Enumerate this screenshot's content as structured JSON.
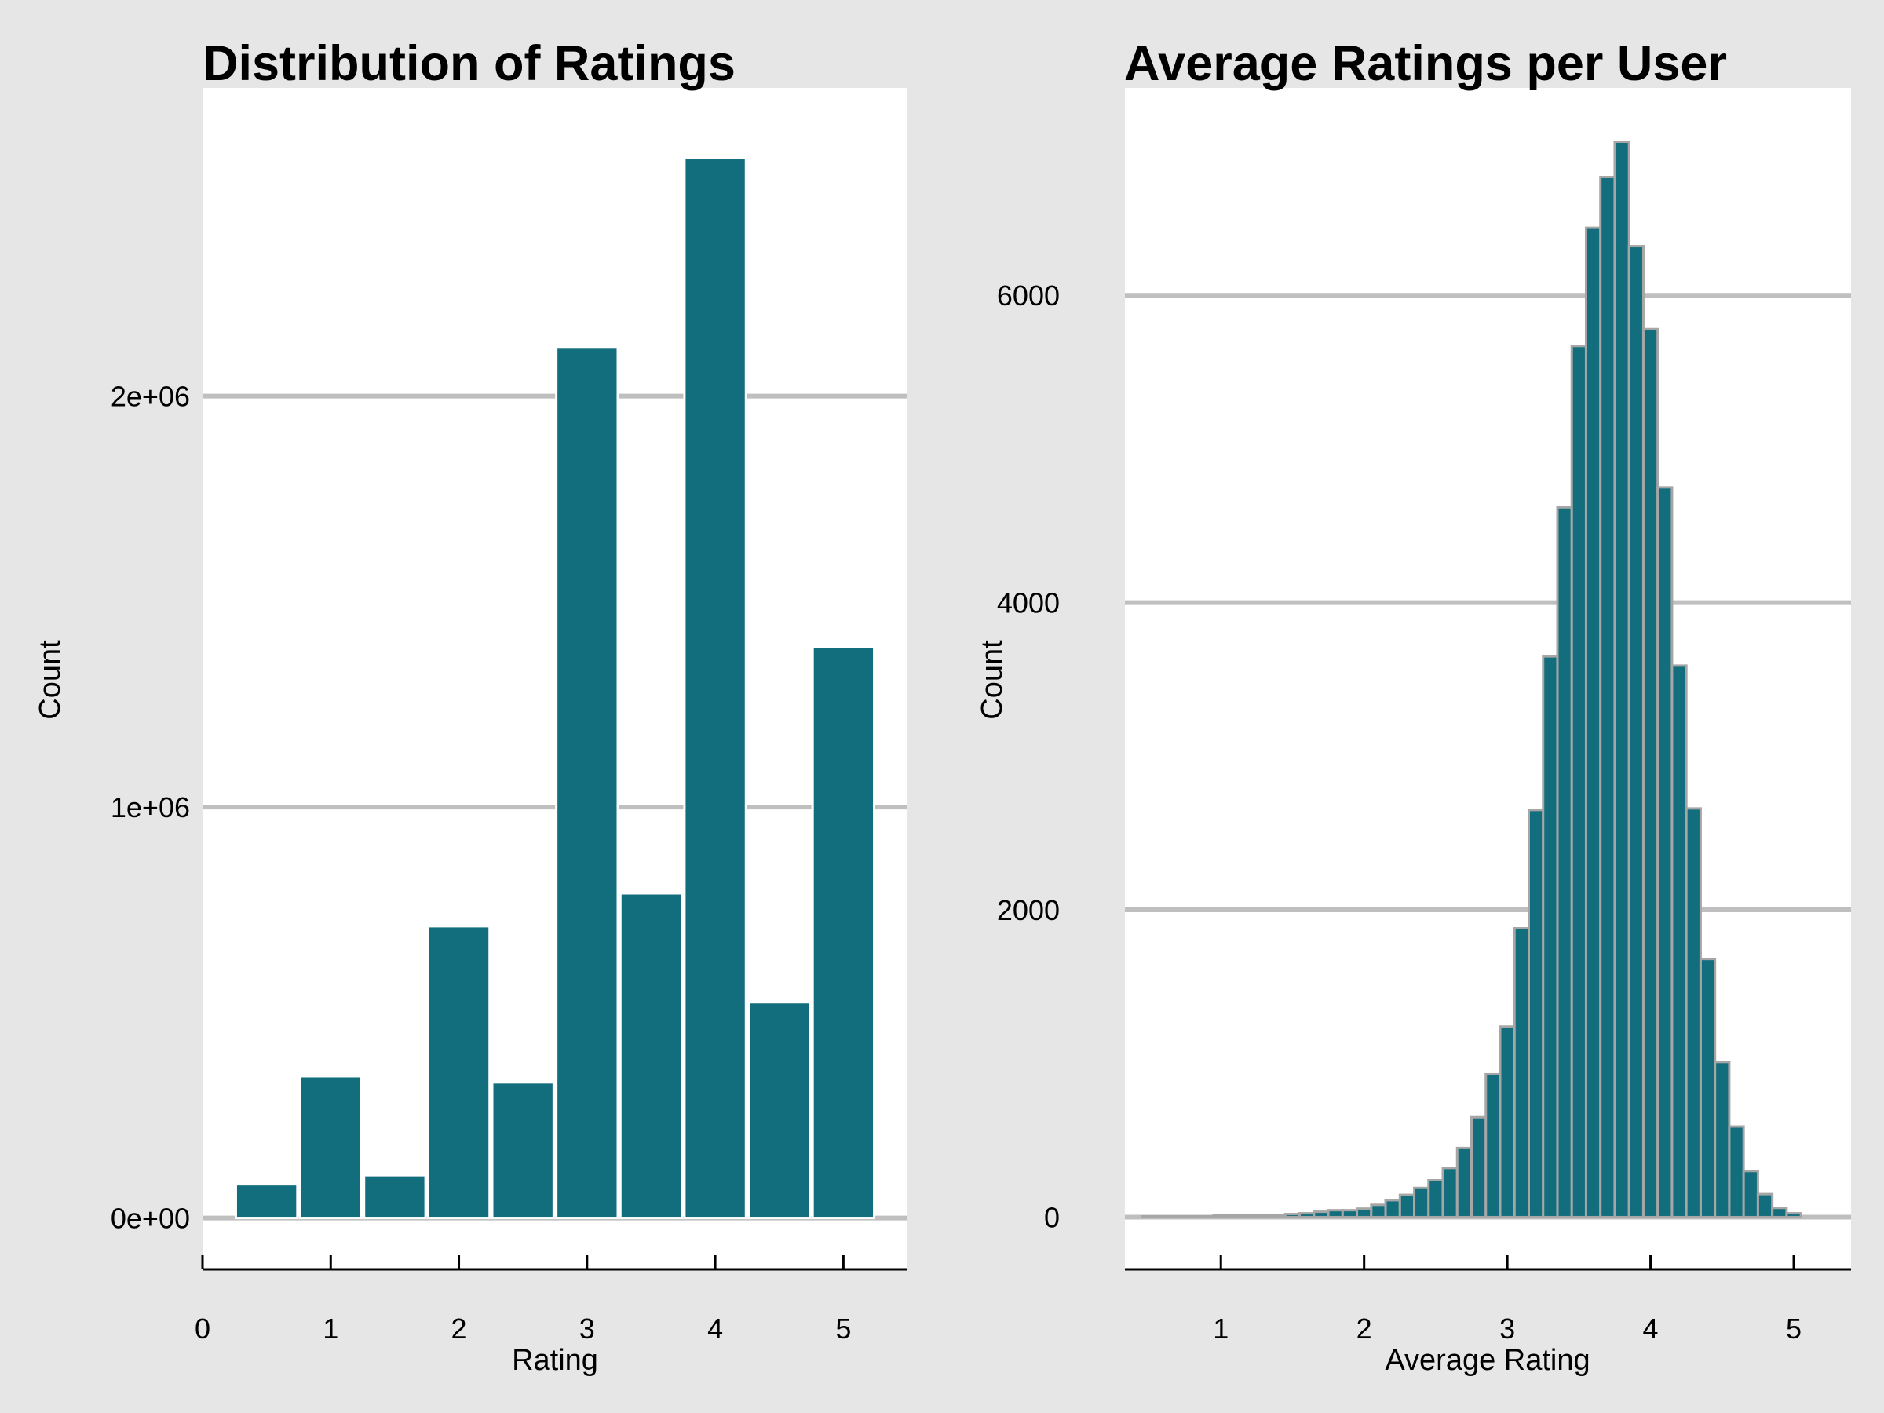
{
  "colors": {
    "background": "#e6e6e6",
    "panel": "#ffffff",
    "bar_fill": "#126e7d",
    "gridline": "#bfbfbf",
    "left_bar_outline": "#ffffff",
    "right_bar_outline": "#a6a6a6"
  },
  "chart_data": [
    {
      "type": "bar",
      "title": "Distribution of Ratings",
      "xlabel": "Rating",
      "ylabel": "Count",
      "grid": "horizontal",
      "xlim": [
        0,
        5.5
      ],
      "ylim": [
        -125000,
        2750000
      ],
      "xticks": [
        "0",
        "1",
        "2",
        "3",
        "4",
        "5"
      ],
      "yticks": [
        "0e+00",
        "1e+06",
        "2e+06"
      ],
      "x": [
        0.5,
        1,
        1.5,
        2,
        2.5,
        3,
        3.5,
        4,
        4.5,
        5
      ],
      "values": [
        82000,
        345000,
        104000,
        710000,
        330000,
        2120000,
        790000,
        2580000,
        525000,
        1390000
      ]
    },
    {
      "type": "bar",
      "title": "Average Ratings per User",
      "xlabel": "Average Rating",
      "ylabel": "Count",
      "grid": "horizontal",
      "xlim": [
        0.33,
        5.4
      ],
      "ylim": [
        -340,
        7350
      ],
      "xticks": [
        "1",
        "2",
        "3",
        "4",
        "5"
      ],
      "yticks": [
        "0",
        "2000",
        "4000",
        "6000"
      ],
      "x": [
        0.5,
        0.6,
        0.7,
        0.8,
        0.9,
        1.0,
        1.1,
        1.2,
        1.3,
        1.4,
        1.5,
        1.6,
        1.7,
        1.8,
        1.9,
        2.0,
        2.1,
        2.2,
        2.3,
        2.4,
        2.5,
        2.6,
        2.7,
        2.8,
        2.9,
        3.0,
        3.1,
        3.2,
        3.3,
        3.4,
        3.5,
        3.6,
        3.7,
        3.8,
        3.9,
        4.0,
        4.1,
        4.2,
        4.3,
        4.4,
        4.5,
        4.6,
        4.7,
        4.8,
        4.9,
        5.0
      ],
      "values": [
        5,
        5,
        5,
        5,
        5,
        10,
        10,
        10,
        15,
        15,
        20,
        25,
        35,
        45,
        45,
        55,
        80,
        110,
        145,
        190,
        240,
        320,
        450,
        650,
        930,
        1240,
        1880,
        2650,
        3650,
        4620,
        5670,
        6440,
        6770,
        7000,
        6320,
        5780,
        4750,
        3590,
        2660,
        1680,
        1010,
        590,
        300,
        150,
        60,
        25
      ]
    }
  ]
}
